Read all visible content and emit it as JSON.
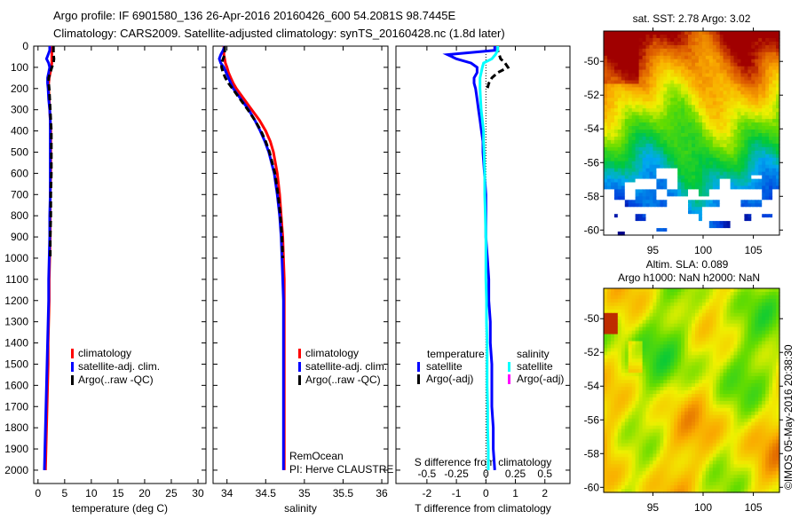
{
  "header": {
    "line1": "Argo profile: IF 6901580_136 26-Apr-2016 20160426_600 54.2081S 98.7445E",
    "line2": "Climatology: CARS2009. Satellite-adjusted climatology: synTS_20160428.nc (1.8d later)"
  },
  "colors": {
    "climatology": "#ff0000",
    "satellite": "#0000ff",
    "argo": "#000000",
    "salinity_satellite": "#00ffff",
    "salinity_argo": "#ff00ff"
  },
  "chart_data": [
    {
      "type": "line",
      "id": "temperature",
      "xlabel": "temperature (deg C)",
      "ylabel": "",
      "xlim": [
        -0.8,
        31.5
      ],
      "ylim": [
        0,
        2063
      ],
      "xticks": [
        0,
        5,
        10,
        15,
        20,
        25,
        30
      ],
      "yticks": [
        0,
        100,
        200,
        300,
        400,
        500,
        600,
        700,
        800,
        900,
        1000,
        1100,
        1200,
        1300,
        1400,
        1500,
        1600,
        1700,
        1800,
        1900,
        2000
      ],
      "depth": [
        0,
        20,
        40,
        60,
        80,
        100,
        125,
        150,
        175,
        200,
        250,
        300,
        350,
        400,
        450,
        500,
        600,
        700,
        800,
        900,
        1000,
        1100,
        1200,
        1300,
        1400,
        1500,
        1600,
        1700,
        1800,
        1900,
        2000
      ],
      "series": [
        {
          "name": "climatology",
          "color": "#ff0000",
          "dash": false,
          "values": [
            2.6,
            2.6,
            2.6,
            2.6,
            2.6,
            2.5,
            2.3,
            2.1,
            2.0,
            2.0,
            2.1,
            2.2,
            2.3,
            2.4,
            2.4,
            2.4,
            2.4,
            2.3,
            2.3,
            2.3,
            2.2,
            2.1,
            2.1,
            2.0,
            1.9,
            1.9,
            1.8,
            1.7,
            1.6,
            1.5,
            1.4
          ]
        },
        {
          "name": "satellite-adj. clim.",
          "color": "#0000ff",
          "dash": false,
          "values": [
            2.2,
            2.2,
            1.9,
            1.6,
            2.0,
            2.2,
            2.0,
            1.8,
            1.8,
            1.9,
            2.0,
            2.2,
            2.3,
            2.3,
            2.3,
            2.3,
            2.3,
            2.3,
            2.2,
            2.2,
            2.1,
            2.0,
            2.0,
            1.9,
            1.8,
            1.7,
            1.6,
            1.5,
            1.4,
            1.3,
            1.2
          ]
        },
        {
          "name": "Argo(..raw -QC)",
          "color": "#000000",
          "dash": true,
          "values": [
            2.9,
            2.9,
            2.9,
            3.0,
            2.9,
            2.6,
            2.3,
            2.0,
            2.0,
            2.1,
            2.2,
            2.3,
            2.4,
            2.5,
            2.5,
            2.5,
            2.5,
            2.4,
            2.4,
            2.3,
            2.3,
            null,
            null,
            null,
            null,
            null,
            null,
            null,
            null,
            null,
            null
          ]
        }
      ],
      "legend": {
        "placement": "center-left",
        "entries": [
          "climatology",
          "satellite-adj. clim.",
          "Argo(..raw -QC)"
        ]
      }
    },
    {
      "type": "line",
      "id": "salinity",
      "xlabel": "salinity",
      "xlim": [
        33.82,
        36.08
      ],
      "ylim": [
        0,
        2063
      ],
      "xticks": [
        34,
        34.5,
        35,
        35.5,
        36
      ],
      "depth": [
        0,
        20,
        40,
        60,
        80,
        100,
        125,
        150,
        175,
        200,
        250,
        300,
        350,
        400,
        450,
        500,
        600,
        700,
        800,
        900,
        1000,
        1100,
        1200,
        1300,
        1400,
        1500,
        1600,
        1700,
        1800,
        1900,
        2000
      ],
      "series": [
        {
          "name": "climatology",
          "color": "#ff0000",
          "dash": false,
          "values": [
            33.96,
            33.96,
            33.96,
            33.97,
            33.98,
            34.0,
            34.02,
            34.05,
            34.08,
            34.12,
            34.22,
            34.32,
            34.42,
            34.5,
            34.56,
            34.6,
            34.65,
            34.68,
            34.7,
            34.72,
            34.73,
            34.74,
            34.74,
            34.74,
            34.74,
            34.74,
            34.74,
            34.74,
            34.74,
            34.74,
            34.74
          ]
        },
        {
          "name": "satellite-adj. clim.",
          "color": "#0000ff",
          "dash": false,
          "values": [
            33.97,
            33.95,
            33.92,
            33.9,
            33.92,
            33.96,
            33.99,
            34.02,
            34.05,
            34.08,
            34.18,
            34.28,
            34.36,
            34.43,
            34.49,
            34.54,
            34.61,
            34.65,
            34.68,
            34.7,
            34.71,
            34.72,
            34.73,
            34.73,
            34.73,
            34.73,
            34.73,
            34.73,
            34.73,
            34.73,
            34.73
          ]
        },
        {
          "name": "Argo(..raw -QC)",
          "color": "#000000",
          "dash": true,
          "values": [
            33.97,
            33.97,
            33.97,
            33.95,
            33.93,
            33.93,
            33.95,
            33.98,
            34.02,
            34.07,
            34.17,
            34.27,
            34.36,
            34.44,
            34.5,
            34.55,
            34.62,
            34.66,
            34.69,
            34.71,
            34.72,
            null,
            null,
            null,
            null,
            null,
            null,
            null,
            null,
            null,
            null
          ]
        }
      ],
      "legend": {
        "placement": "center-right",
        "entries": [
          "climatology",
          "satellite-adj. clim.",
          "Argo(..raw -QC)"
        ]
      },
      "annotation": {
        "line1": "RemOcean",
        "line2": "PI: Herve CLAUSTRE"
      }
    },
    {
      "type": "line",
      "id": "difference",
      "xlabel": "T difference from climatology",
      "x2label": "S difference from climatology",
      "xlim": [
        -3.05,
        2.85
      ],
      "ylim": [
        0,
        2063
      ],
      "xticks": [
        -2,
        -1,
        0,
        1,
        2
      ],
      "x2ticks": [
        -0.5,
        -0.25,
        0,
        0.25,
        0.5
      ],
      "x2ticklabels": [
        "-0.5",
        "-0.25",
        "0",
        "0.25",
        "0.5"
      ],
      "s_scale": 0.25,
      "depth": [
        0,
        20,
        40,
        60,
        80,
        100,
        125,
        150,
        175,
        200,
        250,
        300,
        350,
        400,
        450,
        500,
        600,
        700,
        800,
        900,
        1000,
        1100,
        1200,
        1300,
        1400,
        1500,
        1600,
        1700,
        1800,
        1900,
        2000
      ],
      "series": [
        {
          "name": "temperature satellite",
          "axis": "T",
          "color": "#0000ff",
          "dash": false,
          "values": [
            0.3,
            0.3,
            -1.3,
            -1.0,
            -0.5,
            -0.3,
            -0.3,
            -0.4,
            -0.4,
            -0.35,
            -0.3,
            -0.25,
            -0.2,
            -0.15,
            -0.1,
            -0.1,
            -0.05,
            0,
            0,
            0,
            0.05,
            0.1,
            0.1,
            0.15,
            0.15,
            0.2,
            0.2,
            0.2,
            0.25,
            0.25,
            0.3
          ]
        },
        {
          "name": "temperature Argo(-adj)",
          "axis": "T",
          "color": "#000000",
          "dash": true,
          "values": [
            0.4,
            0.4,
            0.45,
            0.5,
            0.65,
            0.75,
            0.4,
            0.2,
            0.1,
            0.05,
            null,
            null,
            null,
            null,
            null,
            null,
            null,
            null,
            null,
            null,
            null,
            null,
            null,
            null,
            null,
            null,
            null,
            null,
            null,
            null,
            null
          ]
        },
        {
          "name": "salinity satellite",
          "axis": "S",
          "color": "#00ffff",
          "dash": false,
          "values": [
            0.1,
            0.1,
            0.08,
            0.05,
            -0.02,
            -0.03,
            -0.04,
            -0.05,
            -0.05,
            -0.05,
            -0.045,
            -0.04,
            -0.03,
            -0.02,
            -0.02,
            -0.015,
            -0.01,
            -0.01,
            -0.005,
            0,
            0,
            0,
            0.005,
            0.005,
            0.01,
            0.01,
            0.01,
            0.015,
            0.015,
            0.02,
            0.02
          ]
        }
      ],
      "legend": {
        "placement": "center",
        "temperature_title": "temperature",
        "temperature_entries": [
          "satellite",
          "Argo(-adj)"
        ],
        "salinity_title": "salinity",
        "salinity_entries": [
          "satellite",
          "Argo(-adj)"
        ]
      }
    },
    {
      "type": "heatmap",
      "id": "sst-map",
      "title": "sat. SST: 2.78 Argo: 3.02",
      "xlim": [
        90.1,
        107.6
      ],
      "ylim": [
        -60.3,
        -48.2
      ],
      "xticks": [
        95,
        100,
        105
      ],
      "yticks": [
        -50,
        -52,
        -54,
        -56,
        -58,
        -60
      ],
      "colormap": "jet"
    },
    {
      "type": "heatmap",
      "id": "sla-map",
      "title1": "Altim. SLA: 0.089",
      "title2": "Argo h1000: NaN h2000: NaN",
      "xlim": [
        90.1,
        107.6
      ],
      "ylim": [
        -60.3,
        -48.2
      ],
      "xticks": [
        95,
        100,
        105
      ],
      "yticks": [
        -50,
        -52,
        -54,
        -56,
        -58,
        -60
      ],
      "colormap": "jet",
      "credit": "©IMOS 05-May-2016 20:38:30"
    }
  ]
}
